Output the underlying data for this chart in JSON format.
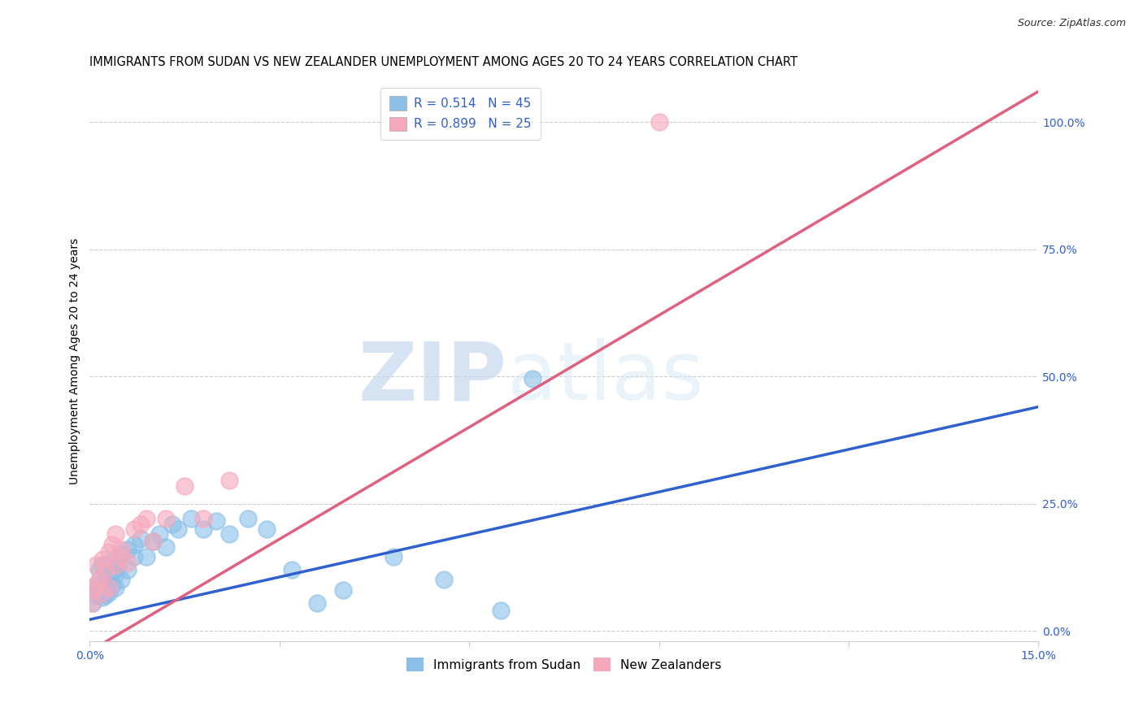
{
  "title": "IMMIGRANTS FROM SUDAN VS NEW ZEALANDER UNEMPLOYMENT AMONG AGES 20 TO 24 YEARS CORRELATION CHART",
  "source": "Source: ZipAtlas.com",
  "ylabel": "Unemployment Among Ages 20 to 24 years",
  "xlim": [
    0.0,
    0.15
  ],
  "ylim": [
    -0.02,
    1.08
  ],
  "xticks": [
    0.0,
    0.03,
    0.06,
    0.09,
    0.12,
    0.15
  ],
  "xticklabels": [
    "0.0%",
    "",
    "",
    "",
    "",
    "15.0%"
  ],
  "yticks_right": [
    0.0,
    0.25,
    0.5,
    0.75,
    1.0
  ],
  "yticklabels_right": [
    "0.0%",
    "25.0%",
    "50.0%",
    "75.0%",
    "100.0%"
  ],
  "grid_color": "#cccccc",
  "background_color": "#ffffff",
  "series1_color": "#8bbfe8",
  "series2_color": "#f5a8bc",
  "series1_line_color": "#3060cc",
  "series2_line_color": "#e06080",
  "series1_label": "Immigrants from Sudan",
  "series2_label": "New Zealanders",
  "R1": "0.514",
  "N1": "45",
  "R2": "0.899",
  "N2": "25",
  "watermark_zip": "ZIP",
  "watermark_atlas": "atlas",
  "title_fontsize": 10.5,
  "axis_label_fontsize": 10,
  "tick_fontsize": 10,
  "legend_fontsize": 11,
  "series1_x": [
    0.0005,
    0.001,
    0.001,
    0.0015,
    0.0015,
    0.002,
    0.002,
    0.002,
    0.0025,
    0.0025,
    0.003,
    0.003,
    0.003,
    0.0035,
    0.0035,
    0.004,
    0.004,
    0.004,
    0.0045,
    0.005,
    0.005,
    0.006,
    0.006,
    0.007,
    0.007,
    0.008,
    0.009,
    0.01,
    0.011,
    0.012,
    0.013,
    0.014,
    0.016,
    0.018,
    0.02,
    0.022,
    0.025,
    0.028,
    0.032,
    0.036,
    0.04,
    0.048,
    0.056,
    0.065,
    0.07
  ],
  "series1_y": [
    0.055,
    0.07,
    0.09,
    0.08,
    0.12,
    0.065,
    0.09,
    0.13,
    0.1,
    0.07,
    0.075,
    0.1,
    0.13,
    0.09,
    0.115,
    0.085,
    0.11,
    0.14,
    0.13,
    0.1,
    0.15,
    0.12,
    0.16,
    0.145,
    0.17,
    0.18,
    0.145,
    0.175,
    0.19,
    0.165,
    0.21,
    0.2,
    0.22,
    0.2,
    0.215,
    0.19,
    0.22,
    0.2,
    0.12,
    0.055,
    0.08,
    0.145,
    0.1,
    0.04,
    0.495
  ],
  "series2_x": [
    0.0003,
    0.0005,
    0.001,
    0.001,
    0.0015,
    0.002,
    0.002,
    0.0025,
    0.003,
    0.003,
    0.0035,
    0.004,
    0.004,
    0.005,
    0.005,
    0.006,
    0.007,
    0.008,
    0.009,
    0.01,
    0.012,
    0.015,
    0.018,
    0.022,
    0.09
  ],
  "series2_y": [
    0.055,
    0.08,
    0.09,
    0.13,
    0.1,
    0.075,
    0.14,
    0.12,
    0.085,
    0.155,
    0.17,
    0.13,
    0.19,
    0.16,
    0.145,
    0.135,
    0.2,
    0.21,
    0.22,
    0.175,
    0.22,
    0.285,
    0.22,
    0.295,
    1.0
  ],
  "line1_x0": 0.0,
  "line1_y0": 0.022,
  "line1_x1": 0.15,
  "line1_y1": 0.44,
  "line2_x0": 0.0,
  "line2_y0": -0.04,
  "line2_x1": 0.15,
  "line2_y1": 1.06
}
